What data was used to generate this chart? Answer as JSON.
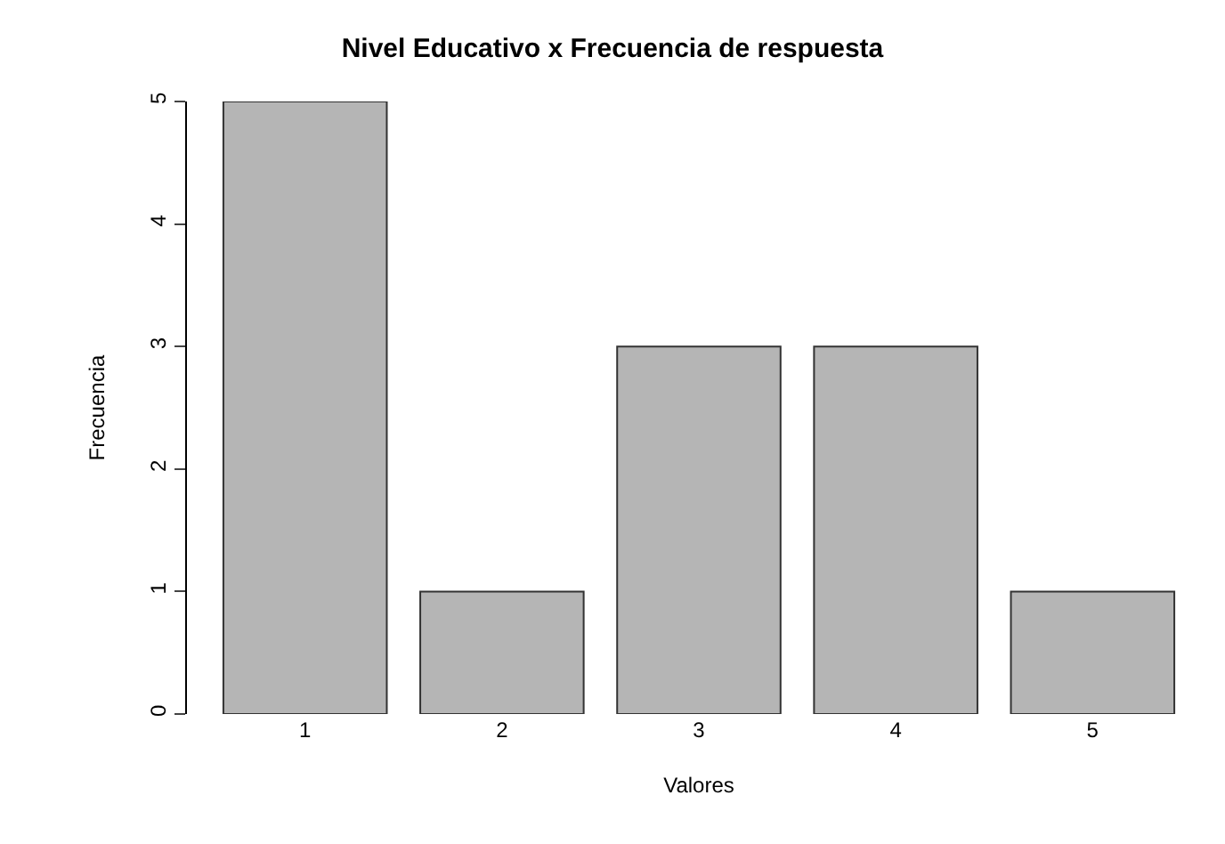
{
  "chart_data": {
    "type": "bar",
    "title": "Nivel Educativo x Frecuencia de respuesta",
    "xlabel": "Valores",
    "ylabel": "Frecuencia",
    "categories": [
      "1",
      "2",
      "3",
      "4",
      "5"
    ],
    "values": [
      5,
      1,
      3,
      3,
      1
    ],
    "color": "#b5b5b5",
    "ylim": [
      0,
      5
    ],
    "yticks": [
      0,
      1,
      2,
      3,
      4,
      5
    ],
    "grid": false,
    "legend": false
  }
}
